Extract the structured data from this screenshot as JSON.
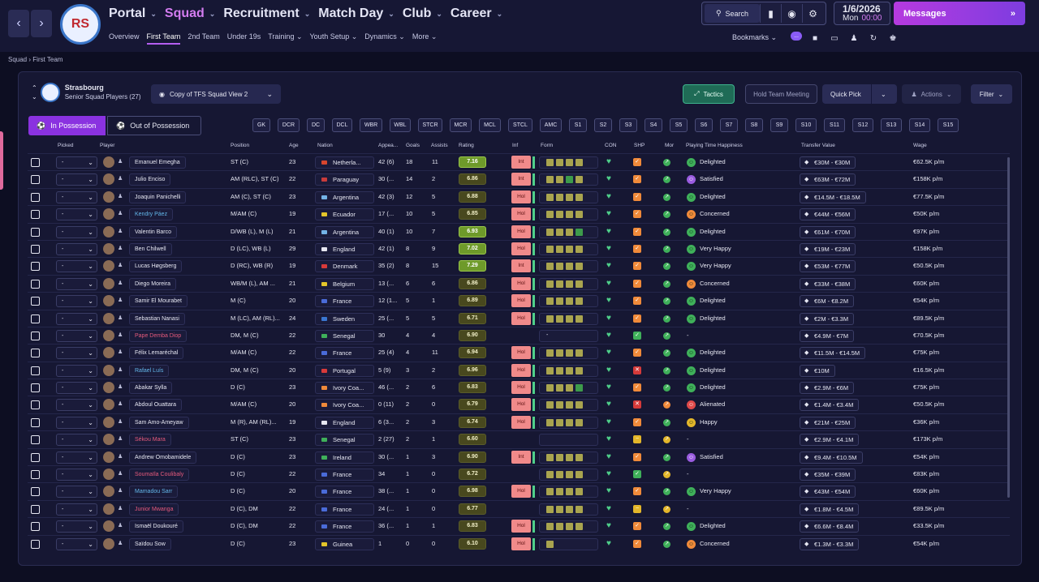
{
  "nav": {
    "back": "‹",
    "forward": "›",
    "main": [
      {
        "label": "Portal",
        "active": false
      },
      {
        "label": "Squad",
        "active": true
      },
      {
        "label": "Recruitment",
        "active": false
      },
      {
        "label": "Match Day",
        "active": false
      },
      {
        "label": "Club",
        "active": false
      },
      {
        "label": "Career",
        "active": false
      }
    ],
    "sub": [
      {
        "label": "Overview"
      },
      {
        "label": "First Team",
        "active": true
      },
      {
        "label": "2nd Team"
      },
      {
        "label": "Under 19s"
      },
      {
        "label": "Training ⌄"
      },
      {
        "label": "Youth Setup ⌄"
      },
      {
        "label": "Dynamics ⌄"
      },
      {
        "label": "More ⌄"
      }
    ]
  },
  "toolbar": {
    "search_label": "Search",
    "date": "1/6/2026",
    "day": "Mon",
    "time": "00:00",
    "messages_label": "Messages",
    "bookmarks_label": "Bookmarks",
    "badge": "..."
  },
  "breadcrumb": {
    "a": "Squad",
    "sep": "›",
    "b": "First Team"
  },
  "team": {
    "name": "Strasbourg",
    "subtitle": "Senior Squad Players (27)",
    "view": "Copy of TFS Squad View 2"
  },
  "buttons": {
    "tactics": "Tactics",
    "meeting": "Hold Team Meeting",
    "quick_pick": "Quick Pick",
    "actions": "Actions",
    "filter": "Filter",
    "in_possession": "In Possession",
    "out_possession": "Out of Possession"
  },
  "positions": [
    "GK",
    "DCR",
    "DC",
    "DCL",
    "WBR",
    "WBL",
    "STCR",
    "MCR",
    "MCL",
    "STCL",
    "AMC",
    "S1",
    "S2",
    "S3",
    "S4",
    "S5",
    "S6",
    "S7",
    "S8",
    "S9",
    "S10",
    "S11",
    "S12",
    "S13",
    "S14",
    "S15"
  ],
  "columns": {
    "picked": "Picked",
    "player": "Player",
    "position": "Position",
    "age": "Age",
    "nation": "Nation",
    "apps": "Appea...",
    "goals": "Goals",
    "assists": "Assists",
    "rating": "Rating",
    "inf": "Inf",
    "form": "Form",
    "con": "CON",
    "shp": "SHP",
    "mor": "Mor",
    "happiness": "Playing Time Happiness",
    "value": "Transfer Value",
    "wage": "Wage"
  },
  "colors": {
    "accent": "#8a32e0",
    "active_nav": "#d37cf0",
    "rating_green": "#6e9a2a",
    "inf_pill": "#f08a8a",
    "positive": "#4fd08a"
  },
  "players": [
    {
      "name": "Emanuel Emegha",
      "nc": "",
      "pos": "ST (C)",
      "age": "23",
      "nation": "Netherla...",
      "flag": "#d8462e",
      "apps": "42 (6)",
      "goals": "18",
      "assists": "11",
      "rating": "7.16",
      "rg": true,
      "inf": "Int",
      "form": "yyyy",
      "shp": "o",
      "mor": "g",
      "hi": "g",
      "happy": "Delighted",
      "value": "€30M - €30M",
      "wage": "€62.5K p/m"
    },
    {
      "name": "Julio Enciso",
      "nc": "",
      "pos": "AM (RLC), ST (C)",
      "age": "22",
      "nation": "Paraguay",
      "flag": "#c83b3b",
      "apps": "30 (...",
      "goals": "14",
      "assists": "2",
      "rating": "6.86",
      "rg": false,
      "inf": "Int",
      "form": "yygy",
      "shp": "o",
      "mor": "g",
      "hi": "p",
      "happy": "Satisfied",
      "value": "€63M - €72M",
      "wage": "€158K p/m"
    },
    {
      "name": "Joaquin Panichelli",
      "nc": "",
      "pos": "AM (C), ST (C)",
      "age": "23",
      "nation": "Argentina",
      "flag": "#74b3e6",
      "apps": "42 (3)",
      "goals": "12",
      "assists": "5",
      "rating": "6.88",
      "rg": false,
      "inf": "Hol",
      "form": "yyyy",
      "shp": "o",
      "mor": "g",
      "hi": "g",
      "happy": "Delighted",
      "value": "€14.5M - €18.5M",
      "wage": "€77.5K p/m"
    },
    {
      "name": "Kendry Páez",
      "nc": "blue",
      "pos": "M/AM (C)",
      "age": "19",
      "nation": "Ecuador",
      "flag": "#e3c52a",
      "apps": "17 (...",
      "goals": "10",
      "assists": "5",
      "rating": "6.85",
      "rg": false,
      "inf": "Hol",
      "form": "yyyy",
      "shp": "o",
      "mor": "g",
      "hi": "o",
      "happy": "Concerned",
      "value": "€44M - €56M",
      "wage": "€50K p/m"
    },
    {
      "name": "Valentin Barco",
      "nc": "",
      "pos": "D/WB (L), M (L)",
      "age": "21",
      "nation": "Argentina",
      "flag": "#74b3e6",
      "apps": "40 (1)",
      "goals": "10",
      "assists": "7",
      "rating": "6.93",
      "rg": true,
      "inf": "Hol",
      "form": "yyyg",
      "shp": "o",
      "mor": "g",
      "hi": "g",
      "happy": "Delighted",
      "value": "€61M - €70M",
      "wage": "€97K p/m"
    },
    {
      "name": "Ben Chilwell",
      "nc": "",
      "pos": "D (LC), WB (L)",
      "age": "29",
      "nation": "England",
      "flag": "#e6e6f0",
      "apps": "42 (1)",
      "goals": "8",
      "assists": "9",
      "rating": "7.02",
      "rg": true,
      "inf": "Hol",
      "form": "yyyy",
      "shp": "o",
      "mor": "g",
      "hi": "g",
      "happy": "Very Happy",
      "value": "€19M - €23M",
      "wage": "€158K p/m"
    },
    {
      "name": "Lucas Høgsberg",
      "nc": "",
      "pos": "D (RC), WB (R)",
      "age": "19",
      "nation": "Denmark",
      "flag": "#d83a3a",
      "apps": "35 (2)",
      "goals": "8",
      "assists": "15",
      "rating": "7.29",
      "rg": true,
      "inf": "Int",
      "form": "yyyy",
      "shp": "o",
      "mor": "g",
      "hi": "g",
      "happy": "Very Happy",
      "value": "€53M - €77M",
      "wage": "€50.5K p/m"
    },
    {
      "name": "Diego Moreira",
      "nc": "",
      "pos": "WB/M (L), AM ...",
      "age": "21",
      "nation": "Belgium",
      "flag": "#e3c52a",
      "apps": "13 (...",
      "goals": "6",
      "assists": "6",
      "rating": "6.86",
      "rg": false,
      "inf": "Hol",
      "form": "yyyy",
      "shp": "o",
      "mor": "g",
      "hi": "o",
      "happy": "Concerned",
      "value": "€33M - €38M",
      "wage": "€60K p/m"
    },
    {
      "name": "Samir El Mourabet",
      "nc": "",
      "pos": "M (C)",
      "age": "20",
      "nation": "France",
      "flag": "#4a6bd8",
      "apps": "12 (1...",
      "goals": "5",
      "assists": "1",
      "rating": "6.89",
      "rg": false,
      "inf": "Hol",
      "form": "yyyy",
      "shp": "o",
      "mor": "g",
      "hi": "g",
      "happy": "Delighted",
      "value": "€6M - €8.2M",
      "wage": "€54K p/m"
    },
    {
      "name": "Sebastian Nanasi",
      "nc": "",
      "pos": "M (LC), AM (RL)...",
      "age": "24",
      "nation": "Sweden",
      "flag": "#3a76d0",
      "apps": "25 (...",
      "goals": "5",
      "assists": "5",
      "rating": "6.71",
      "rg": false,
      "inf": "Hol",
      "form": "yyyy",
      "shp": "o",
      "mor": "g",
      "hi": "g",
      "happy": "Delighted",
      "value": "€2M - €3.3M",
      "wage": "€89.5K p/m"
    },
    {
      "name": "Pape Demba Diop",
      "nc": "red",
      "pos": "DM, M (C)",
      "age": "22",
      "nation": "Senegal",
      "flag": "#3fb05a",
      "apps": "30",
      "goals": "4",
      "assists": "4",
      "rating": "6.90",
      "rg": false,
      "inf": "",
      "form": "-",
      "shp": "g",
      "mor": "g",
      "hi": "n",
      "happy": "-",
      "value": "€4.9M - €7M",
      "wage": "€70.5K p/m"
    },
    {
      "name": "Félix Lemaréchal",
      "nc": "",
      "pos": "M/AM (C)",
      "age": "22",
      "nation": "France",
      "flag": "#4a6bd8",
      "apps": "25 (4)",
      "goals": "4",
      "assists": "11",
      "rating": "6.94",
      "rg": false,
      "inf": "Hol",
      "form": "yyyy",
      "shp": "o",
      "mor": "g",
      "hi": "g",
      "happy": "Delighted",
      "value": "€11.5M - €14.5M",
      "wage": "€75K p/m"
    },
    {
      "name": "Rafael Luís",
      "nc": "blue",
      "pos": "DM, M (C)",
      "age": "20",
      "nation": "Portugal",
      "flag": "#d83a3a",
      "apps": "5 (9)",
      "goals": "3",
      "assists": "2",
      "rating": "6.96",
      "rg": false,
      "inf": "Hol",
      "form": "yyyy",
      "shp": "r",
      "mor": "g",
      "hi": "g",
      "happy": "Delighted",
      "value": "€10M",
      "wage": "€16.5K p/m"
    },
    {
      "name": "Abakar Sylla",
      "nc": "",
      "pos": "D (C)",
      "age": "23",
      "nation": "Ivory Coa...",
      "flag": "#f08a3a",
      "apps": "46 (...",
      "goals": "2",
      "assists": "6",
      "rating": "6.83",
      "rg": false,
      "inf": "Hol",
      "form": "yyyg",
      "shp": "o",
      "mor": "g",
      "hi": "g",
      "happy": "Delighted",
      "value": "€2.9M - €6M",
      "wage": "€75K p/m"
    },
    {
      "name": "Abdoul Ouattara",
      "nc": "",
      "pos": "M/AM (C)",
      "age": "20",
      "nation": "Ivory Coa...",
      "flag": "#f08a3a",
      "apps": "0 (11)",
      "goals": "2",
      "assists": "0",
      "rating": "6.79",
      "rg": false,
      "inf": "Hol",
      "form": "yyyy",
      "shp": "r",
      "mor": "o",
      "hi": "r",
      "happy": "Alienated",
      "value": "€1.4M - €3.4M",
      "wage": "€50.5K p/m"
    },
    {
      "name": "Sam Amo-Ameyaw",
      "nc": "",
      "pos": "M (R), AM (RL)...",
      "age": "19",
      "nation": "England",
      "flag": "#e6e6f0",
      "apps": "6 (3...",
      "goals": "2",
      "assists": "3",
      "rating": "6.74",
      "rg": false,
      "inf": "Hol",
      "form": "yyyy",
      "shp": "o",
      "mor": "g",
      "hi": "y",
      "happy": "Happy",
      "value": "€21M - €25M",
      "wage": "€36K p/m"
    },
    {
      "name": "Sékou Mara",
      "nc": "red",
      "pos": "ST (C)",
      "age": "23",
      "nation": "Senegal",
      "flag": "#3fb05a",
      "apps": "2 (27)",
      "goals": "2",
      "assists": "1",
      "rating": "6.60",
      "rg": false,
      "inf": "",
      "form": "",
      "shp": "y",
      "mor": "y",
      "hi": "n",
      "happy": "-",
      "value": "€2.9M - €4.1M",
      "wage": "€173K p/m"
    },
    {
      "name": "Andrew Omobamidele",
      "nc": "",
      "pos": "D (C)",
      "age": "23",
      "nation": "Ireland",
      "flag": "#3fb05a",
      "apps": "30 (...",
      "goals": "1",
      "assists": "3",
      "rating": "6.90",
      "rg": false,
      "inf": "Int",
      "form": "yyyy",
      "shp": "o",
      "mor": "g",
      "hi": "p",
      "happy": "Satisfied",
      "value": "€9.4M - €10.5M",
      "wage": "€54K p/m"
    },
    {
      "name": "Soumaïla Coulibaly",
      "nc": "red",
      "pos": "D (C)",
      "age": "22",
      "nation": "France",
      "flag": "#4a6bd8",
      "apps": "34",
      "goals": "1",
      "assists": "0",
      "rating": "6.72",
      "rg": false,
      "inf": "",
      "form": "yyyy",
      "shp": "g",
      "mor": "y",
      "hi": "n",
      "happy": "-",
      "value": "€35M - €39M",
      "wage": "€83K p/m"
    },
    {
      "name": "Mamadou Sarr",
      "nc": "blue",
      "pos": "D (C)",
      "age": "20",
      "nation": "France",
      "flag": "#4a6bd8",
      "apps": "38 (...",
      "goals": "1",
      "assists": "0",
      "rating": "6.98",
      "rg": false,
      "inf": "Hol",
      "form": "yyyy",
      "shp": "o",
      "mor": "g",
      "hi": "g",
      "happy": "Very Happy",
      "value": "€43M - €54M",
      "wage": "€60K p/m"
    },
    {
      "name": "Junior Mwanga",
      "nc": "red",
      "pos": "D (C), DM",
      "age": "22",
      "nation": "France",
      "flag": "#4a6bd8",
      "apps": "24 (...",
      "goals": "1",
      "assists": "0",
      "rating": "6.77",
      "rg": false,
      "inf": "",
      "form": "yyyy",
      "shp": "y",
      "mor": "y",
      "hi": "n",
      "happy": "-",
      "value": "€1.8M - €4.5M",
      "wage": "€89.5K p/m"
    },
    {
      "name": "Ismaël Doukouré",
      "nc": "",
      "pos": "D (C), DM",
      "age": "22",
      "nation": "France",
      "flag": "#4a6bd8",
      "apps": "36 (...",
      "goals": "1",
      "assists": "1",
      "rating": "6.83",
      "rg": false,
      "inf": "Hol",
      "form": "yyyy",
      "shp": "o",
      "mor": "g",
      "hi": "g",
      "happy": "Delighted",
      "value": "€6.6M - €8.4M",
      "wage": "€33.5K p/m"
    },
    {
      "name": "Saïdou Sow",
      "nc": "",
      "pos": "D (C)",
      "age": "23",
      "nation": "Guinea",
      "flag": "#e3c52a",
      "apps": "1",
      "goals": "0",
      "assists": "0",
      "rating": "6.10",
      "rg": false,
      "inf": "Hol",
      "form": "y",
      "shp": "o",
      "mor": "g",
      "hi": "o",
      "happy": "Concerned",
      "value": "€1.3M - €3.3M",
      "wage": "€54K p/m"
    }
  ]
}
